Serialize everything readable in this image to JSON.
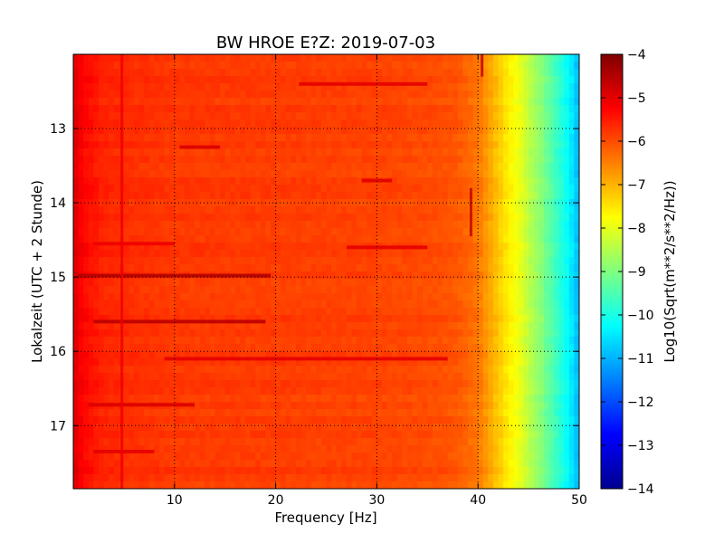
{
  "chart_data": {
    "type": "heatmap",
    "title": "BW HROE E?Z: 2019-07-03",
    "xlabel": "Frequency [Hz]",
    "ylabel": "Lokalzeit (UTC + 2 Stunde)",
    "xlim": [
      0,
      50
    ],
    "ylim": [
      17.85,
      12.0
    ],
    "x_ticks": [
      10,
      20,
      30,
      40,
      50
    ],
    "y_ticks": [
      13,
      14,
      15,
      16,
      17
    ],
    "grid": true,
    "colormap": "jet",
    "colorbar": {
      "label": "Log10(Sqrt(m**2/s**2/Hz))",
      "range": [
        -14,
        -4
      ],
      "ticks": [
        -4,
        -5,
        -6,
        -7,
        -8,
        -9,
        -10,
        -11,
        -12,
        -13,
        -14
      ]
    },
    "spectrum_profile": {
      "frequency_hz": [
        0,
        1,
        3,
        6,
        10,
        20,
        30,
        36,
        38,
        40,
        41,
        42,
        43,
        44,
        45,
        46,
        47,
        48,
        49,
        50
      ],
      "log10_psd": [
        -4.9,
        -5.3,
        -5.6,
        -5.7,
        -5.8,
        -5.85,
        -5.9,
        -6.0,
        -6.1,
        -6.4,
        -6.8,
        -7.2,
        -7.6,
        -7.9,
        -8.4,
        -8.8,
        -9.3,
        -9.8,
        -10.3,
        -11.0
      ]
    },
    "horizontal_bands": [
      {
        "time": 12.4,
        "f_start": 22.3,
        "f_end": 35,
        "value": -5.0
      },
      {
        "time": 13.25,
        "f_start": 10.5,
        "f_end": 14.5,
        "value": -4.9
      },
      {
        "time": 13.7,
        "f_start": 28.5,
        "f_end": 31.5,
        "value": -4.95
      },
      {
        "time": 14.55,
        "f_start": 2,
        "f_end": 10,
        "value": -5.1
      },
      {
        "time": 14.6,
        "f_start": 27,
        "f_end": 35,
        "value": -5.0
      },
      {
        "time": 14.98,
        "f_start": 0.5,
        "f_end": 19.5,
        "value": -4.5
      },
      {
        "time": 15.6,
        "f_start": 2,
        "f_end": 19,
        "value": -4.6
      },
      {
        "time": 16.1,
        "f_start": 9,
        "f_end": 37,
        "value": -5.0
      },
      {
        "time": 16.72,
        "f_start": 1.5,
        "f_end": 12,
        "value": -4.9
      },
      {
        "time": 17.35,
        "f_start": 2,
        "f_end": 8,
        "value": -5.0
      }
    ],
    "vertical_features": [
      {
        "frequency": 39.3,
        "t_start": 13.8,
        "t_end": 14.45,
        "value": -4.7
      },
      {
        "frequency": 40.4,
        "t_start": 12.0,
        "t_end": 12.3,
        "value": -4.7
      },
      {
        "frequency": 4.8,
        "t_start": 12.0,
        "t_end": 17.85,
        "value": -5.1
      }
    ]
  }
}
